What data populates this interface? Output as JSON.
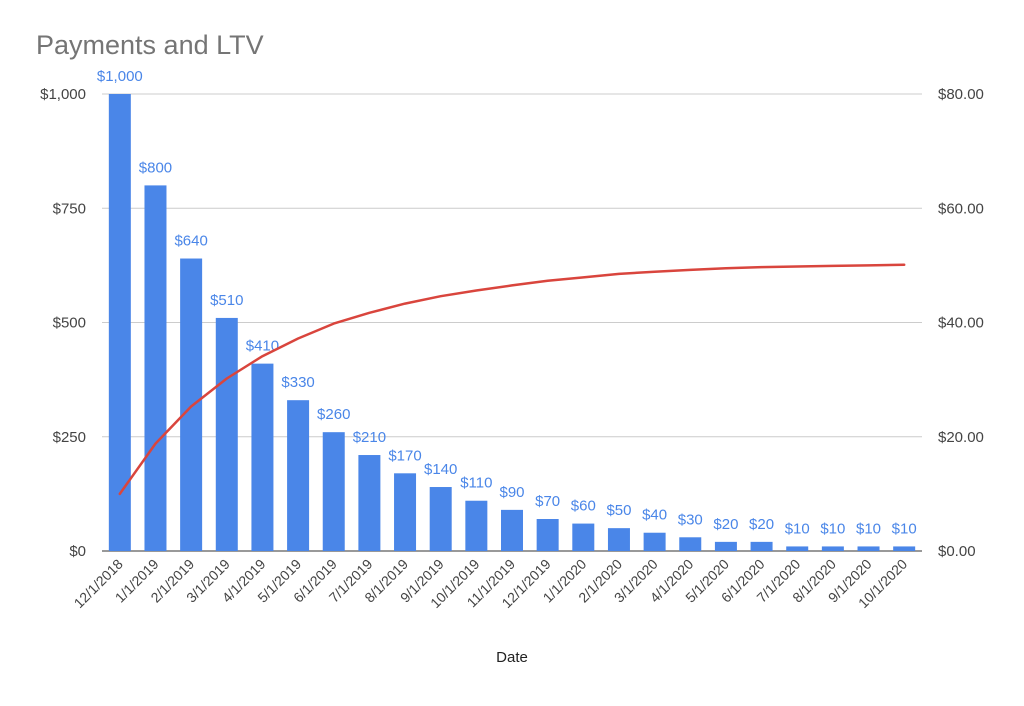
{
  "chart_data": {
    "type": "bar",
    "title": "Payments and LTV",
    "xlabel": "Date",
    "ylabel": "",
    "ylabel_right": "",
    "categories": [
      "12/1/2018",
      "1/1/2019",
      "2/1/2019",
      "3/1/2019",
      "4/1/2019",
      "5/1/2019",
      "6/1/2019",
      "7/1/2019",
      "8/1/2019",
      "9/1/2019",
      "10/1/2019",
      "11/1/2019",
      "12/1/2019",
      "1/1/2020",
      "2/1/2020",
      "3/1/2020",
      "4/1/2020",
      "5/1/2020",
      "6/1/2020",
      "7/1/2020",
      "8/1/2020",
      "9/1/2020",
      "10/1/2020"
    ],
    "series": [
      {
        "kind": "bar",
        "axis": "left",
        "color": "#4a86e8",
        "values": [
          1000,
          800,
          640,
          510,
          410,
          330,
          260,
          210,
          170,
          140,
          110,
          90,
          70,
          60,
          50,
          40,
          30,
          20,
          20,
          10,
          10,
          10,
          10
        ],
        "data_labels": [
          "$1,000",
          "$800",
          "$640",
          "$510",
          "$410",
          "$330",
          "$260",
          "$210",
          "$170",
          "$140",
          "$110",
          "$90",
          "$70",
          "$60",
          "$50",
          "$40",
          "$30",
          "$20",
          "$20",
          "$10",
          "$10",
          "$10",
          "$10"
        ]
      },
      {
        "kind": "line",
        "axis": "right",
        "color": "#d9453d",
        "values": [
          10.0,
          18.8,
          25.3,
          30.2,
          34.1,
          37.2,
          39.8,
          41.7,
          43.3,
          44.6,
          45.6,
          46.5,
          47.3,
          47.9,
          48.5,
          48.9,
          49.2,
          49.5,
          49.7,
          49.8,
          49.9,
          50.0,
          50.1
        ]
      }
    ],
    "ylim": [
      0,
      1000
    ],
    "y2lim": [
      0,
      80
    ],
    "yticks": [
      "$0",
      "$250",
      "$500",
      "$750",
      "$1,000"
    ],
    "y2ticks": [
      "$0.00",
      "$20.00",
      "$40.00",
      "$60.00",
      "$80.00"
    ],
    "grid": true,
    "legend": "none"
  }
}
